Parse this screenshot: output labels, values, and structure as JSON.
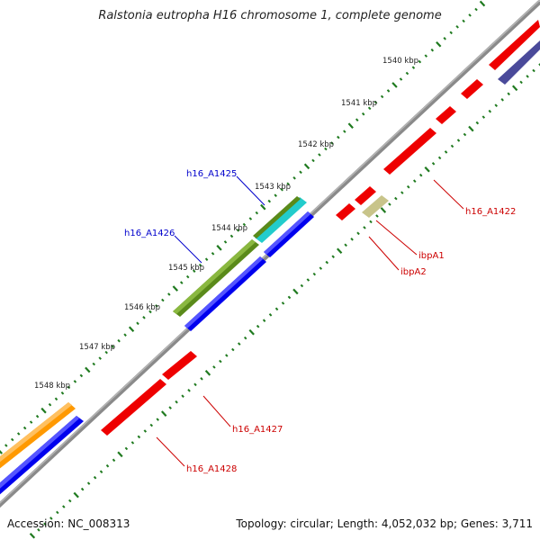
{
  "title": "Ralstonia eutropha H16 chromosome 1, complete genome",
  "accession": "Accession: NC_008313",
  "summary": "Topology: circular; Length: 4,052,032 bp; Genes: 3,711",
  "colors": {
    "backbone": "#808080",
    "tick": "#1f7a1f",
    "forward_gene": "#0000ee",
    "reverse_gene": "#ee0000",
    "olive_gene": "#5a8a1a",
    "cyan_gene": "#22cccc",
    "orange_gene": "#ff9900",
    "navy_gene": "#4a4a9a",
    "tan_gene": "#c8c48a",
    "label_blue": "#0000cc",
    "label_red": "#cc0000"
  },
  "scale_labels": [
    "1540 kbp",
    "1541 kbp",
    "1542 kbp",
    "1543 kbp",
    "1544 kbp",
    "1545 kbp",
    "1546 kbp",
    "1547 kbp",
    "1548 kbp"
  ],
  "gene_labels": {
    "h16_A1425": "h16_A1425",
    "h16_A1426": "h16_A1426",
    "h16_A1422": "h16_A1422",
    "ibpA1": "ibpA1",
    "ibpA2": "ibpA2",
    "h16_A1427": "h16_A1427",
    "h16_A1428": "h16_A1428"
  }
}
